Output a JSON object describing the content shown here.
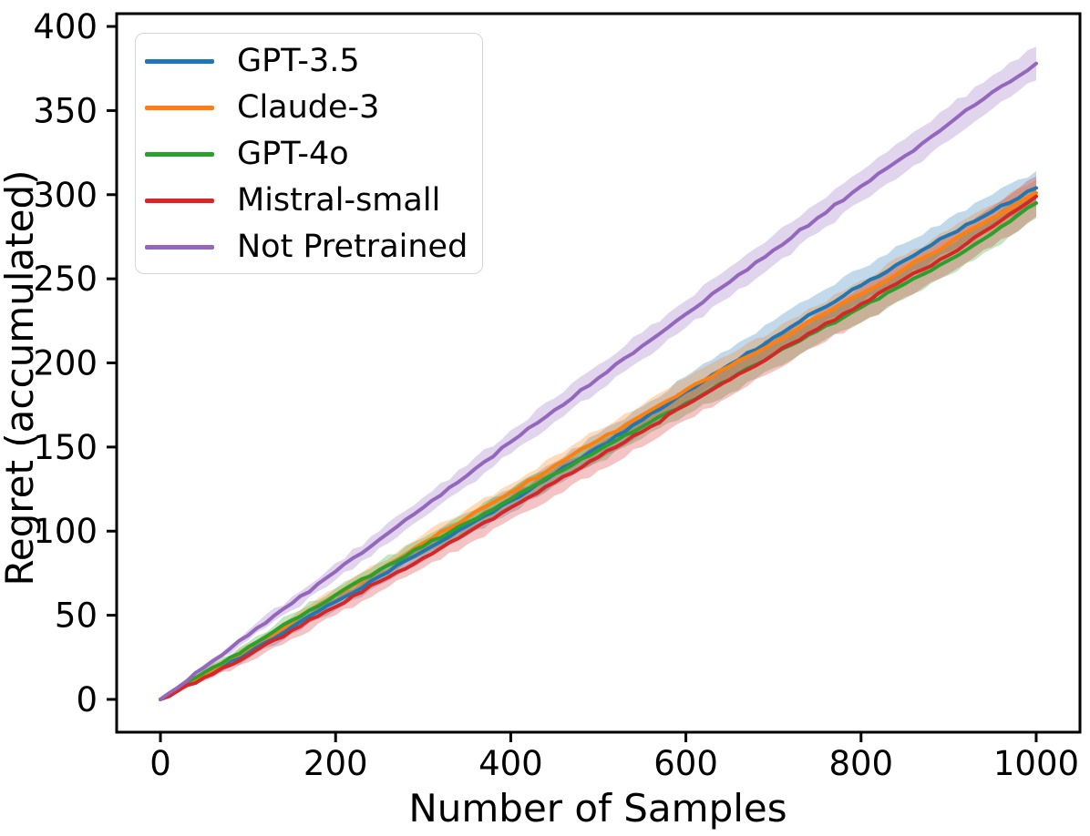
{
  "chart_data": {
    "type": "line",
    "title": "",
    "xlabel": "Number of Samples",
    "ylabel": "Regret (accumulated)",
    "xlim": [
      -50,
      1050
    ],
    "ylim": [
      -19.5,
      407.6
    ],
    "x_ticks": [
      0,
      200,
      400,
      600,
      800,
      1000
    ],
    "y_ticks": [
      0,
      50,
      100,
      150,
      200,
      250,
      300,
      350,
      400
    ],
    "grid": false,
    "legend_position": "upper left",
    "band_opacity": 0.28,
    "x": [
      0,
      50,
      100,
      150,
      200,
      250,
      300,
      350,
      400,
      450,
      500,
      550,
      600,
      650,
      700,
      750,
      800,
      850,
      900,
      950,
      1000
    ],
    "series": [
      {
        "name": "GPT-3.5",
        "color": "#1f77b4",
        "values": [
          0,
          14,
          28,
          43,
          58,
          73,
          88,
          103,
          118,
          134,
          150,
          166,
          183,
          199,
          215,
          231,
          246,
          261,
          276,
          290,
          304
        ],
        "band": [
          0,
          2,
          4,
          4,
          5,
          5,
          6,
          6,
          7,
          7,
          8,
          8,
          9,
          9,
          10,
          10,
          10,
          10,
          10,
          10,
          10
        ]
      },
      {
        "name": "Claude-3",
        "color": "#ff7f0e",
        "values": [
          0,
          15,
          30,
          46,
          62,
          77,
          93,
          108,
          123,
          139,
          154,
          169,
          184,
          198,
          212,
          227,
          241,
          256,
          271,
          286,
          301
        ],
        "band": [
          0,
          2,
          3,
          3,
          4,
          4,
          5,
          5,
          5,
          6,
          6,
          6,
          7,
          7,
          7,
          7,
          8,
          8,
          8,
          8,
          8
        ]
      },
      {
        "name": "GPT-4o",
        "color": "#2ca02c",
        "values": [
          0,
          16,
          31,
          47,
          62,
          77,
          91,
          105,
          119,
          134,
          148,
          162,
          176,
          190,
          205,
          219,
          233,
          247,
          261,
          277,
          295
        ],
        "band": [
          0,
          2,
          3,
          4,
          4,
          5,
          5,
          6,
          6,
          6,
          7,
          7,
          7,
          8,
          8,
          8,
          9,
          9,
          9,
          9,
          9
        ]
      },
      {
        "name": "Mistral-small",
        "color": "#d62728",
        "values": [
          0,
          13,
          26,
          41,
          55,
          70,
          84,
          99,
          114,
          129,
          144,
          159,
          175,
          190,
          205,
          220,
          235,
          250,
          264,
          281,
          299
        ],
        "band": [
          0,
          2,
          4,
          5,
          5,
          6,
          6,
          7,
          7,
          8,
          8,
          9,
          9,
          10,
          10,
          10,
          11,
          11,
          11,
          12,
          12
        ]
      },
      {
        "name": "Not Pretrained",
        "color": "#9467bd",
        "values": [
          0,
          19,
          38,
          57,
          76,
          95,
          114,
          133,
          153,
          172,
          191,
          210,
          229,
          248,
          267,
          286,
          305,
          323,
          342,
          361,
          378
        ],
        "band": [
          0,
          2,
          3,
          4,
          5,
          5,
          6,
          6,
          7,
          7,
          8,
          8,
          8,
          9,
          9,
          9,
          9,
          10,
          10,
          10,
          10
        ]
      }
    ]
  }
}
